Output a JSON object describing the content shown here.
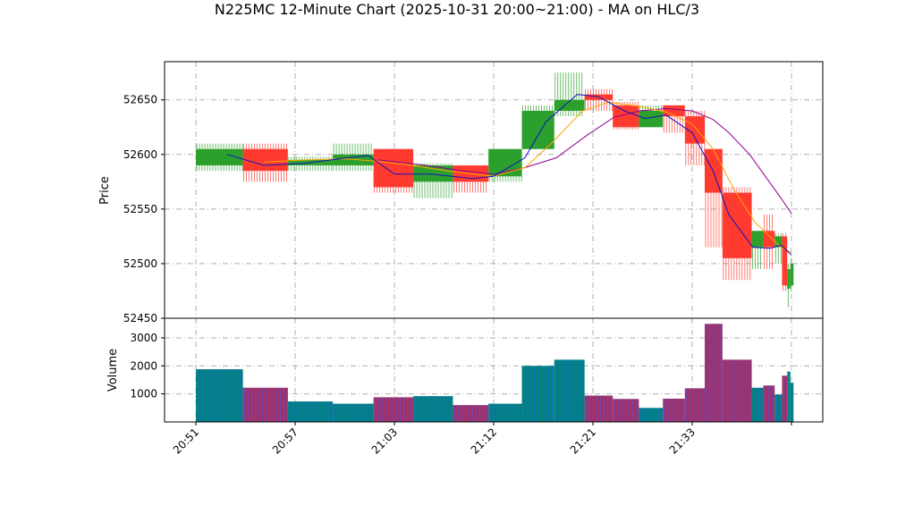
{
  "chart_data": {
    "type": "candlestick",
    "title": "N225MC 12-Minute Chart (2025-10-31 20:00~21:00) - MA on HLC/3",
    "colors": {
      "up": "#2ca02c",
      "down": "#ff3b30",
      "ma_short": "#1010c0",
      "ma_mid": "#ffa500",
      "ma_long": "#900090",
      "vol_up_fill": "#008080",
      "vol_down_fill": "#a0306a",
      "vol_stripe": "#3366ff",
      "grid": "#b0b0b0"
    },
    "grid": true,
    "price_panel": {
      "ylabel": "Price",
      "ylim": [
        52450,
        52685
      ],
      "yticks": [
        52450,
        52500,
        52550,
        52600,
        52650
      ]
    },
    "volume_panel": {
      "ylabel": "Volume",
      "ylim": [
        0,
        3700
      ],
      "yticks": [
        1000,
        2000,
        3000
      ]
    },
    "x_range": [
      -3,
      60
    ],
    "x_ticks": [
      {
        "x": 0,
        "label": "20:51"
      },
      {
        "x": 9.5,
        "label": "20:57"
      },
      {
        "x": 19,
        "label": "21:03"
      },
      {
        "x": 28.5,
        "label": "21:12"
      },
      {
        "x": 38,
        "label": "21:21"
      },
      {
        "x": 47.5,
        "label": "21:33"
      },
      {
        "x": 57,
        "label": ""
      }
    ],
    "candles": [
      {
        "x0": 0,
        "x1": 4.5,
        "open": 52590,
        "high": 52610,
        "low": 52585,
        "close": 52605,
        "volume": 1880
      },
      {
        "x0": 4.5,
        "x1": 8.8,
        "open": 52605,
        "high": 52610,
        "low": 52575,
        "close": 52585,
        "volume": 1220
      },
      {
        "x0": 8.8,
        "x1": 13.1,
        "open": 52590,
        "high": 52598,
        "low": 52585,
        "close": 52595,
        "volume": 730
      },
      {
        "x0": 13.1,
        "x1": 17,
        "open": 52590,
        "high": 52610,
        "low": 52585,
        "close": 52600,
        "volume": 650
      },
      {
        "x0": 17,
        "x1": 20.8,
        "open": 52605,
        "high": 52605,
        "low": 52565,
        "close": 52570,
        "volume": 880
      },
      {
        "x0": 20.8,
        "x1": 24.6,
        "open": 52575,
        "high": 52592,
        "low": 52560,
        "close": 52590,
        "volume": 920
      },
      {
        "x0": 24.6,
        "x1": 28,
        "open": 52590,
        "high": 52590,
        "low": 52565,
        "close": 52575,
        "volume": 600
      },
      {
        "x0": 28,
        "x1": 31.2,
        "open": 52580,
        "high": 52605,
        "low": 52575,
        "close": 52605,
        "volume": 650
      },
      {
        "x0": 31.2,
        "x1": 34.3,
        "open": 52605,
        "high": 52645,
        "low": 52605,
        "close": 52640,
        "volume": 2000
      },
      {
        "x0": 34.3,
        "x1": 37.2,
        "open": 52640,
        "high": 52675,
        "low": 52635,
        "close": 52650,
        "volume": 2220
      },
      {
        "x0": 37.2,
        "x1": 39.9,
        "open": 52655,
        "high": 52660,
        "low": 52640,
        "close": 52650,
        "volume": 940
      },
      {
        "x0": 39.9,
        "x1": 42.4,
        "open": 52645,
        "high": 52648,
        "low": 52623,
        "close": 52625,
        "volume": 820
      },
      {
        "x0": 42.4,
        "x1": 44.7,
        "open": 52625,
        "high": 52645,
        "low": 52625,
        "close": 52640,
        "volume": 500
      },
      {
        "x0": 44.7,
        "x1": 46.8,
        "open": 52645,
        "high": 52645,
        "low": 52620,
        "close": 52635,
        "volume": 830
      },
      {
        "x0": 46.8,
        "x1": 48.7,
        "open": 52635,
        "high": 52640,
        "low": 52590,
        "close": 52610,
        "volume": 1200
      },
      {
        "x0": 48.7,
        "x1": 50.4,
        "open": 52605,
        "high": 52605,
        "low": 52515,
        "close": 52565,
        "volume": 3500
      },
      {
        "x0": 50.4,
        "x1": 53.2,
        "open": 52565,
        "high": 52570,
        "low": 52485,
        "close": 52505,
        "volume": 2220
      },
      {
        "x0": 53.2,
        "x1": 54.3,
        "open": 52515,
        "high": 52530,
        "low": 52495,
        "close": 52530,
        "volume": 1220
      },
      {
        "x0": 54.3,
        "x1": 55.4,
        "open": 52530,
        "high": 52545,
        "low": 52495,
        "close": 52515,
        "volume": 1300
      },
      {
        "x0": 55.4,
        "x1": 56.1,
        "open": 52515,
        "high": 52528,
        "low": 52500,
        "close": 52525,
        "volume": 980
      },
      {
        "x0": 56.1,
        "x1": 56.6,
        "open": 52525,
        "high": 52528,
        "low": 52475,
        "close": 52480,
        "volume": 1650
      },
      {
        "x0": 56.6,
        "x1": 56.9,
        "open": 52477,
        "high": 52500,
        "low": 52460,
        "close": 52495,
        "volume": 1800
      },
      {
        "x0": 56.9,
        "x1": 57.2,
        "open": 52480,
        "high": 52505,
        "low": 52475,
        "close": 52500,
        "volume": 1400
      }
    ],
    "ma_short": [
      [
        3,
        52600
      ],
      [
        6.5,
        52590
      ],
      [
        10.5,
        52592
      ],
      [
        14.5,
        52597
      ],
      [
        16.5,
        52599
      ],
      [
        19,
        52582
      ],
      [
        22.5,
        52582
      ],
      [
        26.5,
        52578
      ],
      [
        28.5,
        52580
      ],
      [
        31.5,
        52597
      ],
      [
        33.5,
        52630
      ],
      [
        36.5,
        52655
      ],
      [
        38.5,
        52653
      ],
      [
        41,
        52640
      ],
      [
        43,
        52633
      ],
      [
        45,
        52636
      ],
      [
        47.5,
        52620
      ],
      [
        49.5,
        52585
      ],
      [
        51,
        52545
      ],
      [
        53.3,
        52515
      ],
      [
        55,
        52514
      ],
      [
        56,
        52517
      ],
      [
        57,
        52508
      ]
    ],
    "ma_mid": [
      [
        6.5,
        52593
      ],
      [
        10.5,
        52595
      ],
      [
        14.5,
        52596
      ],
      [
        17,
        52594
      ],
      [
        20,
        52591
      ],
      [
        24,
        52585
      ],
      [
        28.5,
        52580
      ],
      [
        31.5,
        52588
      ],
      [
        34,
        52610
      ],
      [
        37,
        52640
      ],
      [
        39.5,
        52648
      ],
      [
        42.5,
        52644
      ],
      [
        45,
        52639
      ],
      [
        47.5,
        52628
      ],
      [
        49.5,
        52605
      ],
      [
        51.5,
        52568
      ],
      [
        53.5,
        52538
      ],
      [
        56,
        52515
      ],
      [
        57,
        52510
      ]
    ],
    "ma_long": [
      [
        17.5,
        52595
      ],
      [
        22,
        52590
      ],
      [
        25.5,
        52585
      ],
      [
        28.5,
        52582
      ],
      [
        31.5,
        52588
      ],
      [
        34.5,
        52597
      ],
      [
        37.5,
        52618
      ],
      [
        40,
        52634
      ],
      [
        42.5,
        52640
      ],
      [
        45,
        52642
      ],
      [
        47.5,
        52640
      ],
      [
        49.5,
        52632
      ],
      [
        51,
        52620
      ],
      [
        53,
        52600
      ],
      [
        56,
        52560
      ],
      [
        57,
        52546
      ]
    ]
  }
}
